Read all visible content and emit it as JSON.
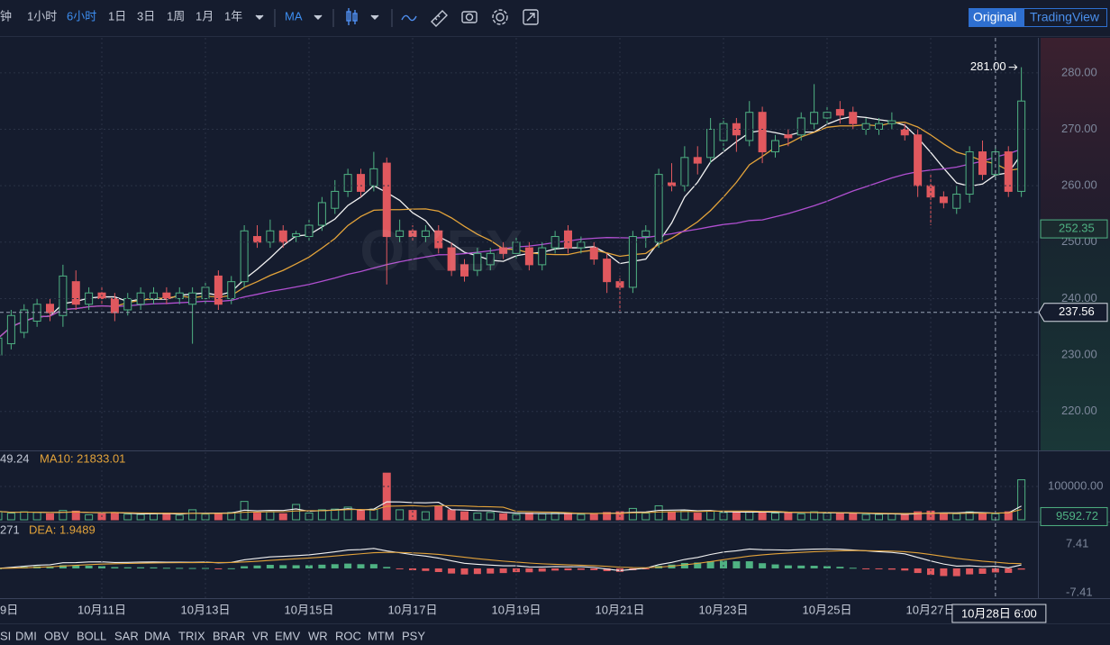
{
  "toolbar": {
    "intervals": [
      "钟",
      "1小时",
      "6小时",
      "1日",
      "3日",
      "1周",
      "1月",
      "1年"
    ],
    "active_interval": 2,
    "indicator": "MA",
    "views": [
      "Original",
      "TradingView"
    ],
    "active_view": 0
  },
  "chart_data": {
    "type": "candlestick",
    "watermark": "OKEX",
    "categories": [
      "9日",
      null,
      null,
      null,
      null,
      null,
      null,
      null,
      "10月11日",
      null,
      null,
      null,
      null,
      null,
      null,
      null,
      "10月13日",
      null,
      null,
      null,
      null,
      null,
      null,
      null,
      "10月15日",
      null,
      null,
      null,
      null,
      null,
      null,
      null,
      "10月17日",
      null,
      null,
      null,
      null,
      null,
      null,
      null,
      "10月19日",
      null,
      null,
      null,
      null,
      null,
      null,
      null,
      "10月21日",
      null,
      null,
      null,
      null,
      null,
      null,
      null,
      "10月23日",
      null,
      null,
      null,
      null,
      null,
      null,
      null,
      "10月25日",
      null,
      null,
      null,
      null,
      null,
      null,
      null,
      "10月27日",
      null,
      null,
      null,
      null,
      null,
      null,
      null
    ],
    "open": [
      230,
      232,
      234,
      236,
      239,
      237,
      243,
      239,
      241,
      240,
      238,
      239,
      240,
      241,
      240,
      239,
      240,
      244,
      240,
      243,
      251,
      250,
      252,
      251,
      251,
      253,
      256,
      259,
      262,
      260,
      264,
      251,
      252,
      251,
      252,
      249,
      246,
      245,
      246,
      249,
      248,
      249,
      246,
      249,
      252,
      249,
      249,
      247,
      243,
      242,
      251,
      250,
      260.5,
      260,
      265,
      265,
      268,
      271,
      268,
      273,
      266,
      269,
      269,
      271,
      272,
      273.5,
      273,
      270,
      270,
      271,
      270,
      269,
      260,
      258,
      256,
      258.5,
      266,
      262,
      266,
      259
    ],
    "high": [
      234,
      238,
      239,
      240,
      240,
      246,
      245,
      242,
      242,
      241,
      241,
      242,
      242,
      242,
      242,
      242,
      243,
      245,
      244,
      253,
      253,
      254,
      253,
      252,
      254,
      258,
      261,
      263,
      263,
      266,
      265,
      254,
      253,
      253,
      253,
      250,
      247,
      249,
      249,
      250,
      251,
      250,
      250,
      252,
      253,
      251,
      250,
      248,
      244,
      252,
      253,
      263,
      264,
      267,
      267,
      272,
      272,
      272,
      275,
      274,
      269,
      270,
      273,
      278,
      274,
      275,
      274,
      272,
      272,
      273,
      271,
      270,
      262,
      259,
      260,
      267,
      268,
      267,
      267,
      281
    ],
    "low": [
      228,
      231,
      233,
      235,
      236,
      235,
      238,
      238,
      239,
      236,
      237,
      238,
      239,
      239,
      239,
      232,
      239,
      238,
      239,
      242,
      249,
      249,
      249,
      250,
      250,
      252,
      255,
      258,
      258,
      259,
      242.5,
      250,
      250,
      250,
      248,
      244,
      243,
      244,
      245,
      247,
      247,
      245,
      245,
      248,
      248,
      248,
      246,
      241,
      237.8,
      241,
      249,
      249,
      259,
      259,
      262,
      264,
      266,
      266,
      267,
      264,
      265,
      267,
      268,
      270,
      271,
      271,
      270,
      269,
      269,
      270,
      268,
      258,
      253,
      256,
      255,
      257,
      261,
      261,
      258,
      258
    ],
    "close": [
      233,
      237,
      238,
      239,
      237.5,
      244,
      239,
      241,
      240,
      237.5,
      240,
      241,
      241,
      240,
      241,
      241,
      242,
      239,
      243,
      252,
      250,
      252,
      250,
      251.5,
      253,
      257,
      259,
      262,
      259,
      263,
      251,
      252,
      251,
      252,
      249,
      245,
      244,
      248,
      248,
      248,
      250,
      246,
      249,
      251,
      249,
      250,
      247,
      243,
      242,
      251,
      252,
      262,
      260,
      265,
      264,
      270,
      271,
      269,
      273,
      266,
      268,
      268.5,
      272,
      273,
      273,
      272.5,
      271,
      271,
      271,
      271.5,
      269,
      260,
      258,
      257,
      258.5,
      266,
      262,
      266,
      259,
      275
    ],
    "up_color": "#4fb283",
    "down_color": "#e0585e",
    "ma": [
      {
        "period": 5,
        "color": "#f2f2f2"
      },
      {
        "period": 10,
        "color": "#e3a33a"
      },
      {
        "period": 30,
        "color": "#b04fd0"
      }
    ],
    "ylim": [
      213.1,
      286.2
    ],
    "yticks": [
      {
        "value": 220,
        "label": "220.00"
      },
      {
        "value": 230,
        "label": "230.00"
      },
      {
        "value": 240,
        "label": "240.00"
      },
      {
        "value": 250,
        "label": "250.00"
      },
      {
        "value": 260,
        "label": "260.00"
      },
      {
        "value": 270,
        "label": "270.00"
      },
      {
        "value": 280,
        "label": "280.00"
      }
    ],
    "grid": true,
    "high_annotation": {
      "value": 281,
      "label": "281.00"
    },
    "marker": 252.35,
    "crosshair": {
      "index": 77,
      "time_label": "10月28日 6:00",
      "price": 237.56
    },
    "volume": {
      "values": [
        25000,
        20000,
        24000,
        22000,
        18000,
        28000,
        26000,
        15000,
        18000,
        22000,
        17000,
        16000,
        18000,
        20000,
        14000,
        30000,
        17000,
        20000,
        22000,
        55000,
        20000,
        24000,
        18000,
        46000,
        20000,
        30000,
        32000,
        38000,
        28000,
        32000,
        140000,
        30000,
        28000,
        24000,
        40000,
        30000,
        24000,
        20000,
        22000,
        18000,
        16000,
        20000,
        18000,
        22000,
        20000,
        16000,
        18000,
        22000,
        24000,
        34000,
        20000,
        42000,
        24000,
        28000,
        20000,
        26000,
        22000,
        22000,
        24000,
        24000,
        20000,
        22000,
        18000,
        24000,
        20000,
        20000,
        18000,
        16000,
        16000,
        18000,
        16000,
        24000,
        26000,
        20000,
        18000,
        24000,
        20000,
        18000,
        24000,
        120000
      ],
      "ylim": [
        0,
        202700
      ],
      "yticks": [
        {
          "value": 100000,
          "label": "100000.00"
        }
      ],
      "last": 9592.72,
      "legend": [
        "49.24",
        "MA10: 21833.01"
      ]
    },
    "macd": {
      "ylim": [
        -8.5,
        13.4
      ],
      "yticks": [
        {
          "value": 7.41,
          "label": "7.41"
        },
        -7.41
      ],
      "legend": [
        "271",
        "DEA: 1.9489"
      ]
    }
  },
  "indicators": [
    "SI",
    "DMI",
    "OBV",
    "BOLL",
    "SAR",
    "DMA",
    "TRIX",
    "BRAR",
    "VR",
    "EMV",
    "WR",
    "ROC",
    "MTM",
    "PSY"
  ]
}
